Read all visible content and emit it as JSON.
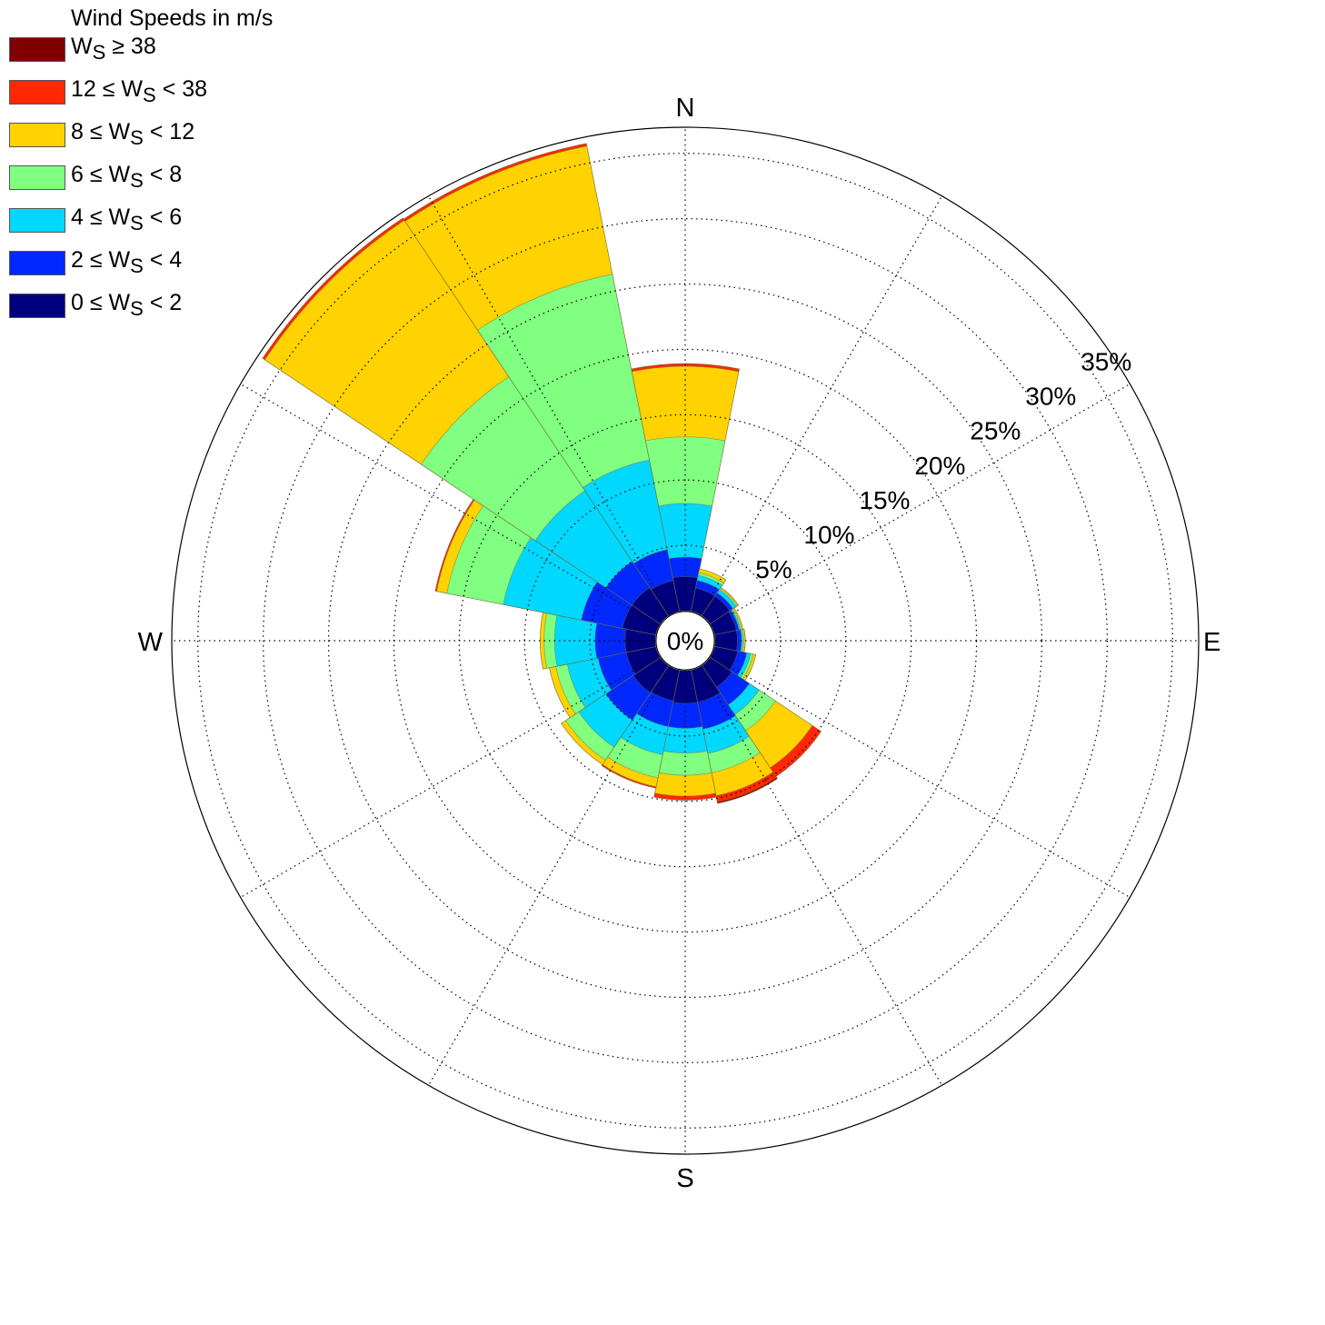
{
  "chart_data": {
    "type": "wind-rose",
    "title": "",
    "legend_title": "Wind Speeds in m/s",
    "legend_placement": "top-left",
    "directions": [
      "N",
      "NNE",
      "NE",
      "ENE",
      "E",
      "ESE",
      "SE",
      "SSE",
      "S",
      "SSW",
      "SW",
      "WSW",
      "W",
      "WNW",
      "NW",
      "NNW"
    ],
    "direction_angles_deg": [
      0,
      22.5,
      45,
      67.5,
      90,
      112.5,
      135,
      157.5,
      180,
      202.5,
      225,
      247.5,
      270,
      292.5,
      315,
      337.5
    ],
    "compass_labels": [
      "N",
      "E",
      "S",
      "W"
    ],
    "radial_ticks": [
      5,
      10,
      15,
      20,
      25,
      30,
      35
    ],
    "radial_tick_labels": [
      "5%",
      "10%",
      "15%",
      "20%",
      "25%",
      "30%",
      "35%"
    ],
    "center_label": "0%",
    "r_max": 37,
    "center_offset": 2.3,
    "grid": true,
    "bins": [
      {
        "lo": "0",
        "hi": "2",
        "color": "#00007F"
      },
      {
        "lo": "2",
        "hi": "4",
        "color": "#0028FF"
      },
      {
        "lo": "4",
        "hi": "6",
        "color": "#00D8FF"
      },
      {
        "lo": "6",
        "hi": "8",
        "color": "#80FF80"
      },
      {
        "lo": "8",
        "hi": "12",
        "color": "#FFD200"
      },
      {
        "lo": "12",
        "hi": "38",
        "color": "#FF2800"
      },
      {
        "lo": "38",
        "hi": null,
        "color": "#800000"
      }
    ],
    "series": [
      {
        "direction": "N",
        "cumulative": [
          2.6,
          4.1,
          8.2,
          13.3,
          18.7,
          18.9,
          18.9
        ]
      },
      {
        "direction": "NNE",
        "cumulative": [
          1.8,
          2.4,
          2.8,
          3.0,
          3.3,
          3.3,
          3.3
        ]
      },
      {
        "direction": "NE",
        "cumulative": [
          1.8,
          2.1,
          2.4,
          2.5,
          2.6,
          2.6,
          2.6
        ]
      },
      {
        "direction": "ENE",
        "cumulative": [
          1.7,
          1.9,
          2.0,
          2.1,
          2.2,
          2.2,
          2.2
        ]
      },
      {
        "direction": "E",
        "cumulative": [
          1.7,
          2.0,
          2.1,
          2.2,
          2.3,
          2.3,
          2.3
        ]
      },
      {
        "direction": "ESE",
        "cumulative": [
          1.8,
          2.5,
          2.8,
          3.0,
          3.2,
          3.2,
          3.2
        ]
      },
      {
        "direction": "SE",
        "cumulative": [
          2.0,
          3.6,
          4.5,
          6.0,
          9.4,
          10.2,
          10.2
        ]
      },
      {
        "direction": "SSE",
        "cumulative": [
          2.5,
          4.6,
          6.5,
          8.0,
          9.8,
          10.3,
          10.4
        ]
      },
      {
        "direction": "S",
        "cumulative": [
          2.5,
          4.4,
          6.3,
          8.0,
          9.6,
          9.9,
          9.9
        ]
      },
      {
        "direction": "SSW",
        "cumulative": [
          2.4,
          4.4,
          6.6,
          8.4,
          9.1,
          9.2,
          9.2
        ]
      },
      {
        "direction": "SW",
        "cumulative": [
          2.5,
          5.0,
          7.5,
          8.7,
          9.1,
          9.1,
          9.1
        ]
      },
      {
        "direction": "WSW",
        "cumulative": [
          2.3,
          4.5,
          6.9,
          7.8,
          8.3,
          8.3,
          8.3
        ]
      },
      {
        "direction": "W",
        "cumulative": [
          2.3,
          4.6,
          7.7,
          8.5,
          8.8,
          8.8,
          8.8
        ]
      },
      {
        "direction": "WNW",
        "cumulative": [
          2.6,
          5.8,
          11.9,
          16.3,
          17.1,
          17.2,
          17.2
        ]
      },
      {
        "direction": "NW",
        "cumulative": [
          2.6,
          5.0,
          11.5,
          22.0,
          36.4,
          36.6,
          36.6
        ]
      },
      {
        "direction": "NNW",
        "cumulative": [
          2.4,
          4.8,
          11.8,
          26.3,
          36.3,
          36.5,
          36.5
        ]
      }
    ]
  }
}
